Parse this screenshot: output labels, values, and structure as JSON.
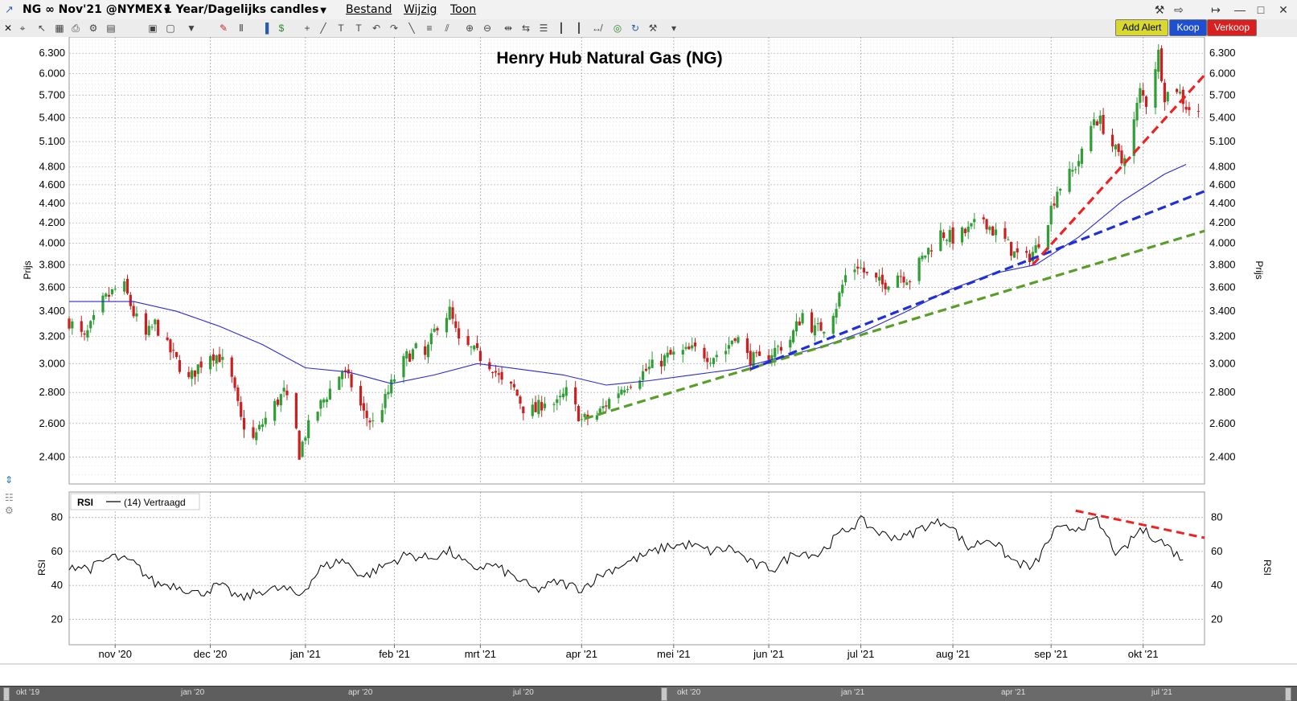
{
  "window": {
    "symbol_title": "NG ∞ Nov'21 @NYMEX",
    "period": "1 Year/Dagelijks candles",
    "menus": [
      "Bestand",
      "Wijzig",
      "Toon"
    ]
  },
  "actions": {
    "add_alert": "Add Alert",
    "buy": "Koop",
    "sell": "Verkoop"
  },
  "colors": {
    "up_candle": "#2e9e35",
    "down_candle": "#cc1f1f",
    "moving_average": "#2a2ad4",
    "trend_red": "#ee2222",
    "trend_blue": "#1f2fd9",
    "trend_green": "#5a9e2a",
    "rsi_line": "#000000",
    "add_alert_bg": "#d8d830",
    "buy_bg": "#1e4fd0",
    "sell_bg": "#d82020"
  },
  "chart_data": [
    {
      "type": "candlestick",
      "title": "Henry Hub Natural Gas (NG)",
      "ylabel": "Prijs",
      "y_scale": "log",
      "ylim": [
        2.25,
        6.55
      ],
      "y_ticks": [
        "2.400",
        "2.600",
        "2.800",
        "3.000",
        "3.200",
        "3.400",
        "3.600",
        "3.800",
        "4.000",
        "4.200",
        "4.400",
        "4.600",
        "4.800",
        "5.100",
        "5.400",
        "5.700",
        "6.000",
        "6.300"
      ],
      "x_range": [
        "2020-10-15",
        "2021-10-20"
      ],
      "x_ticks": [
        {
          "label": "nov '20",
          "date": "2020-10-30"
        },
        {
          "label": "dec '20",
          "date": "2020-11-30"
        },
        {
          "label": "jan '21",
          "date": "2020-12-31"
        },
        {
          "label": "feb '21",
          "date": "2021-01-29"
        },
        {
          "label": "mrt '21",
          "date": "2021-02-26"
        },
        {
          "label": "apr '21",
          "date": "2021-03-31"
        },
        {
          "label": "mei '21",
          "date": "2021-04-30"
        },
        {
          "label": "jun '21",
          "date": "2021-05-31"
        },
        {
          "label": "jul '21",
          "date": "2021-06-30"
        },
        {
          "label": "aug '21",
          "date": "2021-07-30"
        },
        {
          "label": "sep '21",
          "date": "2021-08-31"
        },
        {
          "label": "okt '21",
          "date": "2021-09-30"
        }
      ],
      "grid": true,
      "price_path": [
        {
          "date": "2020-10-15",
          "close": 3.32
        },
        {
          "date": "2020-10-20",
          "close": 3.18
        },
        {
          "date": "2020-10-23",
          "close": 3.32
        },
        {
          "date": "2020-10-26",
          "close": 3.48
        },
        {
          "date": "2020-10-30",
          "close": 3.58
        },
        {
          "date": "2020-11-02",
          "close": 3.6
        },
        {
          "date": "2020-11-05",
          "close": 3.38
        },
        {
          "date": "2020-11-09",
          "close": 3.2
        },
        {
          "date": "2020-11-12",
          "close": 3.3
        },
        {
          "date": "2020-11-16",
          "close": 3.12
        },
        {
          "date": "2020-11-19",
          "close": 3.02
        },
        {
          "date": "2020-11-23",
          "close": 2.88
        },
        {
          "date": "2020-11-26",
          "close": 2.98
        },
        {
          "date": "2020-11-30",
          "close": 3.08
        },
        {
          "date": "2020-12-03",
          "close": 3.05
        },
        {
          "date": "2020-12-07",
          "close": 2.88
        },
        {
          "date": "2020-12-10",
          "close": 2.62
        },
        {
          "date": "2020-12-14",
          "close": 2.5
        },
        {
          "date": "2020-12-17",
          "close": 2.6
        },
        {
          "date": "2020-12-21",
          "close": 2.72
        },
        {
          "date": "2020-12-24",
          "close": 2.8
        },
        {
          "date": "2020-12-28",
          "close": 2.55
        },
        {
          "date": "2020-12-29",
          "close": 2.42
        },
        {
          "date": "2020-12-31",
          "close": 2.54
        },
        {
          "date": "2021-01-05",
          "close": 2.72
        },
        {
          "date": "2021-01-08",
          "close": 2.82
        },
        {
          "date": "2021-01-12",
          "close": 2.95
        },
        {
          "date": "2021-01-15",
          "close": 2.85
        },
        {
          "date": "2021-01-19",
          "close": 2.66
        },
        {
          "date": "2021-01-22",
          "close": 2.6
        },
        {
          "date": "2021-01-26",
          "close": 2.75
        },
        {
          "date": "2021-01-29",
          "close": 2.9
        },
        {
          "date": "2021-02-02",
          "close": 3.05
        },
        {
          "date": "2021-02-05",
          "close": 3.1
        },
        {
          "date": "2021-02-08",
          "close": 3.05
        },
        {
          "date": "2021-02-12",
          "close": 3.3
        },
        {
          "date": "2021-02-16",
          "close": 3.4
        },
        {
          "date": "2021-02-19",
          "close": 3.15
        },
        {
          "date": "2021-02-23",
          "close": 3.1
        },
        {
          "date": "2021-02-26",
          "close": 3.05
        },
        {
          "date": "2021-03-02",
          "close": 2.98
        },
        {
          "date": "2021-03-05",
          "close": 2.86
        },
        {
          "date": "2021-03-09",
          "close": 2.82
        },
        {
          "date": "2021-03-12",
          "close": 2.7
        },
        {
          "date": "2021-03-16",
          "close": 2.68
        },
        {
          "date": "2021-03-19",
          "close": 2.75
        },
        {
          "date": "2021-03-23",
          "close": 2.72
        },
        {
          "date": "2021-03-26",
          "close": 2.8
        },
        {
          "date": "2021-03-31",
          "close": 2.62
        },
        {
          "date": "2021-04-05",
          "close": 2.65
        },
        {
          "date": "2021-04-09",
          "close": 2.75
        },
        {
          "date": "2021-04-14",
          "close": 2.85
        },
        {
          "date": "2021-04-19",
          "close": 2.92
        },
        {
          "date": "2021-04-23",
          "close": 2.98
        },
        {
          "date": "2021-04-28",
          "close": 3.05
        },
        {
          "date": "2021-05-03",
          "close": 3.08
        },
        {
          "date": "2021-05-07",
          "close": 3.1
        },
        {
          "date": "2021-05-12",
          "close": 3.05
        },
        {
          "date": "2021-05-17",
          "close": 3.1
        },
        {
          "date": "2021-05-20",
          "close": 3.22
        },
        {
          "date": "2021-05-24",
          "close": 3.05
        },
        {
          "date": "2021-05-28",
          "close": 3.02
        },
        {
          "date": "2021-06-02",
          "close": 3.1
        },
        {
          "date": "2021-06-07",
          "close": 3.18
        },
        {
          "date": "2021-06-11",
          "close": 3.38
        },
        {
          "date": "2021-06-15",
          "close": 3.25
        },
        {
          "date": "2021-06-18",
          "close": 3.28
        },
        {
          "date": "2021-06-22",
          "close": 3.45
        },
        {
          "date": "2021-06-25",
          "close": 3.7
        },
        {
          "date": "2021-06-29",
          "close": 3.8
        },
        {
          "date": "2021-07-02",
          "close": 3.7
        },
        {
          "date": "2021-07-07",
          "close": 3.62
        },
        {
          "date": "2021-07-12",
          "close": 3.72
        },
        {
          "date": "2021-07-16",
          "close": 3.68
        },
        {
          "date": "2021-07-21",
          "close": 3.9
        },
        {
          "date": "2021-07-26",
          "close": 4.1
        },
        {
          "date": "2021-07-30",
          "close": 4.05
        },
        {
          "date": "2021-08-04",
          "close": 4.12
        },
        {
          "date": "2021-08-09",
          "close": 4.25
        },
        {
          "date": "2021-08-12",
          "close": 4.12
        },
        {
          "date": "2021-08-16",
          "close": 4.02
        },
        {
          "date": "2021-08-19",
          "close": 3.9
        },
        {
          "date": "2021-08-23",
          "close": 3.85
        },
        {
          "date": "2021-08-26",
          "close": 3.95
        },
        {
          "date": "2021-08-30",
          "close": 4.25
        },
        {
          "date": "2021-09-02",
          "close": 4.55
        },
        {
          "date": "2021-09-07",
          "close": 4.75
        },
        {
          "date": "2021-09-10",
          "close": 4.95
        },
        {
          "date": "2021-09-14",
          "close": 5.4
        },
        {
          "date": "2021-09-16",
          "close": 5.35
        },
        {
          "date": "2021-09-20",
          "close": 5.05
        },
        {
          "date": "2021-09-23",
          "close": 4.85
        },
        {
          "date": "2021-09-27",
          "close": 5.35
        },
        {
          "date": "2021-09-29",
          "close": 5.75
        },
        {
          "date": "2021-10-01",
          "close": 5.6
        },
        {
          "date": "2021-10-05",
          "close": 6.3
        },
        {
          "date": "2021-10-07",
          "close": 5.7
        },
        {
          "date": "2021-10-11",
          "close": 5.8
        },
        {
          "date": "2021-10-14",
          "close": 5.55
        },
        {
          "date": "2021-10-18",
          "close": 5.45
        }
      ],
      "moving_average": [
        {
          "date": "2020-10-15",
          "value": 3.48
        },
        {
          "date": "2020-11-05",
          "value": 3.48
        },
        {
          "date": "2020-11-19",
          "value": 3.4
        },
        {
          "date": "2020-12-03",
          "value": 3.28
        },
        {
          "date": "2020-12-17",
          "value": 3.14
        },
        {
          "date": "2020-12-31",
          "value": 2.97
        },
        {
          "date": "2021-01-14",
          "value": 2.94
        },
        {
          "date": "2021-01-28",
          "value": 2.86
        },
        {
          "date": "2021-02-11",
          "value": 2.92
        },
        {
          "date": "2021-02-25",
          "value": 3.0
        },
        {
          "date": "2021-03-11",
          "value": 2.96
        },
        {
          "date": "2021-03-25",
          "value": 2.92
        },
        {
          "date": "2021-04-08",
          "value": 2.85
        },
        {
          "date": "2021-04-22",
          "value": 2.88
        },
        {
          "date": "2021-05-06",
          "value": 2.92
        },
        {
          "date": "2021-05-20",
          "value": 2.96
        },
        {
          "date": "2021-06-03",
          "value": 3.04
        },
        {
          "date": "2021-06-17",
          "value": 3.12
        },
        {
          "date": "2021-07-01",
          "value": 3.24
        },
        {
          "date": "2021-07-15",
          "value": 3.4
        },
        {
          "date": "2021-07-29",
          "value": 3.58
        },
        {
          "date": "2021-08-12",
          "value": 3.72
        },
        {
          "date": "2021-08-26",
          "value": 3.8
        },
        {
          "date": "2021-09-09",
          "value": 4.06
        },
        {
          "date": "2021-09-23",
          "value": 4.42
        },
        {
          "date": "2021-10-07",
          "value": 4.72
        },
        {
          "date": "2021-10-14",
          "value": 4.83
        }
      ],
      "trendlines": [
        {
          "color": "trend_green",
          "from": {
            "date": "2021-04-01",
            "value": 2.63
          },
          "to": {
            "date": "2021-10-20",
            "value": 4.12
          }
        },
        {
          "color": "trend_blue",
          "from": {
            "date": "2021-05-25",
            "value": 2.96
          },
          "to": {
            "date": "2021-10-20",
            "value": 4.53
          }
        },
        {
          "color": "trend_red",
          "from": {
            "date": "2021-08-25",
            "value": 3.8
          },
          "to": {
            "date": "2021-10-20",
            "value": 5.98
          }
        }
      ]
    },
    {
      "type": "line",
      "title": "RSI",
      "legend_label": "(14) Vertraagd",
      "ylabel": "RSI",
      "ylim": [
        5,
        95
      ],
      "y_ticks": [
        "20",
        "40",
        "60",
        "80"
      ],
      "grid": true,
      "values": [
        {
          "date": "2020-10-15",
          "value": 52
        },
        {
          "date": "2020-10-22",
          "value": 50
        },
        {
          "date": "2020-10-29",
          "value": 57
        },
        {
          "date": "2020-11-05",
          "value": 53
        },
        {
          "date": "2020-11-12",
          "value": 41
        },
        {
          "date": "2020-11-19",
          "value": 40
        },
        {
          "date": "2020-11-26",
          "value": 35
        },
        {
          "date": "2020-12-03",
          "value": 40
        },
        {
          "date": "2020-12-10",
          "value": 32
        },
        {
          "date": "2020-12-17",
          "value": 37
        },
        {
          "date": "2020-12-24",
          "value": 38
        },
        {
          "date": "2020-12-29",
          "value": 34
        },
        {
          "date": "2021-01-05",
          "value": 50
        },
        {
          "date": "2021-01-12",
          "value": 55
        },
        {
          "date": "2021-01-19",
          "value": 45
        },
        {
          "date": "2021-01-26",
          "value": 52
        },
        {
          "date": "2021-02-02",
          "value": 58
        },
        {
          "date": "2021-02-09",
          "value": 56
        },
        {
          "date": "2021-02-16",
          "value": 60
        },
        {
          "date": "2021-02-23",
          "value": 50
        },
        {
          "date": "2021-03-02",
          "value": 52
        },
        {
          "date": "2021-03-09",
          "value": 45
        },
        {
          "date": "2021-03-16",
          "value": 37
        },
        {
          "date": "2021-03-23",
          "value": 42
        },
        {
          "date": "2021-03-31",
          "value": 38
        },
        {
          "date": "2021-04-07",
          "value": 47
        },
        {
          "date": "2021-04-14",
          "value": 53
        },
        {
          "date": "2021-04-21",
          "value": 58
        },
        {
          "date": "2021-04-28",
          "value": 63
        },
        {
          "date": "2021-05-05",
          "value": 64
        },
        {
          "date": "2021-05-12",
          "value": 60
        },
        {
          "date": "2021-05-19",
          "value": 62
        },
        {
          "date": "2021-05-26",
          "value": 52
        },
        {
          "date": "2021-06-02",
          "value": 50
        },
        {
          "date": "2021-06-09",
          "value": 60
        },
        {
          "date": "2021-06-16",
          "value": 58
        },
        {
          "date": "2021-06-23",
          "value": 70
        },
        {
          "date": "2021-06-30",
          "value": 78
        },
        {
          "date": "2021-07-07",
          "value": 70
        },
        {
          "date": "2021-07-14",
          "value": 68
        },
        {
          "date": "2021-07-21",
          "value": 75
        },
        {
          "date": "2021-07-28",
          "value": 78
        },
        {
          "date": "2021-08-04",
          "value": 62
        },
        {
          "date": "2021-08-11",
          "value": 68
        },
        {
          "date": "2021-08-18",
          "value": 55
        },
        {
          "date": "2021-08-25",
          "value": 50
        },
        {
          "date": "2021-09-01",
          "value": 72
        },
        {
          "date": "2021-09-08",
          "value": 74
        },
        {
          "date": "2021-09-15",
          "value": 78
        },
        {
          "date": "2021-09-22",
          "value": 57
        },
        {
          "date": "2021-09-29",
          "value": 73
        },
        {
          "date": "2021-10-06",
          "value": 66
        },
        {
          "date": "2021-10-13",
          "value": 55
        }
      ],
      "divergence_line": {
        "color": "trend_red",
        "from": {
          "date": "2021-09-08",
          "value": 84
        },
        "to": {
          "date": "2021-10-20",
          "value": 68
        }
      }
    }
  ],
  "navigator": {
    "labels": [
      "okt '19",
      "jan '20",
      "apr '20",
      "jul '20",
      "okt '20",
      "jan '21",
      "apr '21",
      "jul '21"
    ]
  }
}
